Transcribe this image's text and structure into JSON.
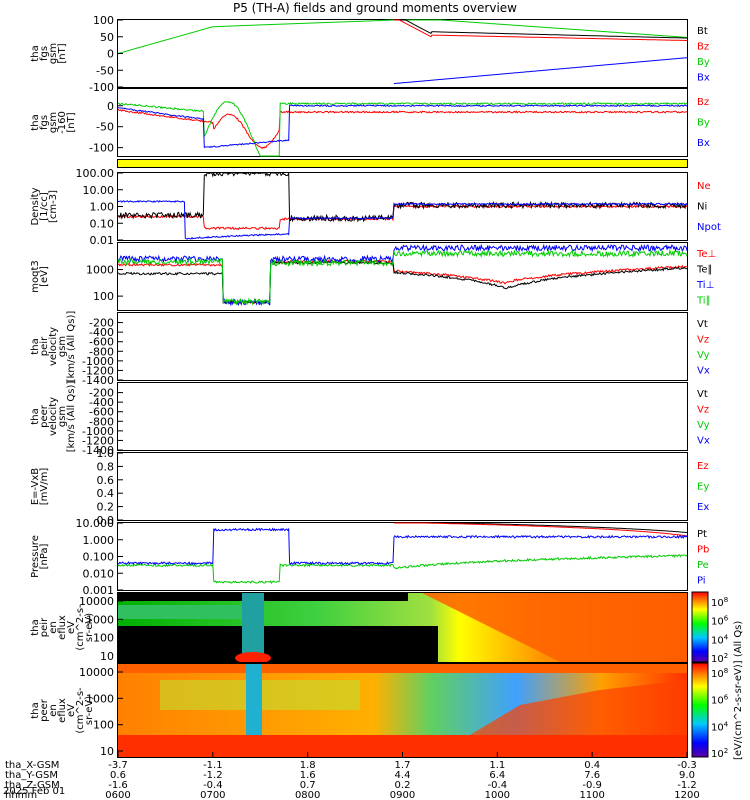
{
  "title": "P5 (TH-A) fields and ground moments overview",
  "date": "2025 Feb 01",
  "colors": {
    "black": "#000000",
    "red": "#ff0000",
    "green": "#00cc00",
    "blue": "#0000ff",
    "yellow": "#ffff00"
  },
  "chart_data": [
    {
      "type": "line",
      "id": "fgs",
      "ylabel_lines": [
        "tha",
        "fgs",
        "gsm",
        "[nT]"
      ],
      "ylim": [
        -100,
        100
      ],
      "ticks": [
        "100",
        "50",
        "0",
        "-50",
        "-100"
      ],
      "series": [
        {
          "name": "Bt",
          "color": "black"
        },
        {
          "name": "Bz",
          "color": "red"
        },
        {
          "name": "By",
          "color": "green"
        },
        {
          "name": "Bx",
          "color": "blue"
        }
      ]
    },
    {
      "type": "line",
      "id": "fgs-dsl",
      "ylabel_lines": [
        "tha",
        "fgs",
        "gsm",
        "-160",
        "[nT]"
      ],
      "ylim": [
        -120,
        40
      ],
      "ticks": [
        "0",
        "-50",
        "-100"
      ],
      "series": [
        {
          "name": "Bz",
          "color": "red"
        },
        {
          "name": "By",
          "color": "green"
        },
        {
          "name": "Bx",
          "color": "blue"
        }
      ]
    },
    {
      "type": "line",
      "id": "density",
      "ylabel_lines": [
        "Density",
        "[1/cc]",
        "[cm-3]"
      ],
      "ylim": [
        0.01,
        100
      ],
      "log": true,
      "ticks": [
        "100.00",
        "10.00",
        "1.00",
        "0.10",
        "0.01"
      ],
      "series": [
        {
          "name": "Ne",
          "color": "red"
        },
        {
          "name": "Ni",
          "color": "black"
        },
        {
          "name": "Npot",
          "color": "blue"
        }
      ]
    },
    {
      "type": "line",
      "id": "temp",
      "ylabel_lines": [
        "moqt3",
        "[eV]"
      ],
      "ylim": [
        30,
        10000
      ],
      "log": true,
      "ticks": [
        "1000",
        "100"
      ],
      "series": [
        {
          "name": "Te⊥",
          "color": "red"
        },
        {
          "name": "Te∥",
          "color": "black"
        },
        {
          "name": "Ti⊥",
          "color": "blue"
        },
        {
          "name": "Ti∥",
          "color": "green"
        }
      ]
    },
    {
      "type": "line",
      "id": "peir-velocity",
      "ylabel_lines": [
        "tha",
        "peir",
        "velocity",
        "gsm",
        "[km/s (All Qs)]"
      ],
      "ylim": [
        -1400,
        0
      ],
      "ticks": [
        "-200",
        "-400",
        "-600",
        "-800",
        "-1000",
        "-1200",
        "-1400"
      ],
      "series": [
        {
          "name": "Vt",
          "color": "black"
        },
        {
          "name": "Vz",
          "color": "red"
        },
        {
          "name": "Vy",
          "color": "green"
        },
        {
          "name": "Vx",
          "color": "blue"
        }
      ]
    },
    {
      "type": "line",
      "id": "peer-velocity",
      "ylabel_lines": [
        "tha",
        "peer",
        "velocity",
        "gsm",
        "[km/s (All Qs)]"
      ],
      "ylim": [
        -1400,
        0
      ],
      "ticks": [
        "-200",
        "-400",
        "-600",
        "-800",
        "-1000",
        "-1200",
        "-1400"
      ],
      "series": [
        {
          "name": "Vt",
          "color": "black"
        },
        {
          "name": "Vz",
          "color": "red"
        },
        {
          "name": "Vy",
          "color": "green"
        },
        {
          "name": "Vx",
          "color": "blue"
        }
      ]
    },
    {
      "type": "line",
      "id": "efield",
      "ylabel_lines": [
        "E=-VxB",
        "[mV/m]"
      ],
      "ylim": [
        0,
        1
      ],
      "ticks": [
        "1.0",
        "0.8",
        "0.6",
        "0.4",
        "0.2",
        "0.0"
      ],
      "series": [
        {
          "name": "Ez",
          "color": "red"
        },
        {
          "name": "Ey",
          "color": "green"
        },
        {
          "name": "Ex",
          "color": "blue"
        }
      ]
    },
    {
      "type": "line",
      "id": "pressure",
      "ylabel_lines": [
        "Pressure",
        "[nPa]"
      ],
      "ylim": [
        0.001,
        10
      ],
      "log": true,
      "ticks": [
        "10.000",
        "1.000",
        "0.100",
        "0.010",
        "0.001"
      ],
      "series": [
        {
          "name": "Pt",
          "color": "black"
        },
        {
          "name": "Pb",
          "color": "red"
        },
        {
          "name": "Pe",
          "color": "green"
        },
        {
          "name": "Pi",
          "color": "blue"
        }
      ]
    },
    {
      "type": "heatmap",
      "id": "peir-spec",
      "ylabel_lines": [
        "tha",
        "peir",
        "en",
        "eflux",
        "eV",
        "(cm^2-s-",
        "sr-eV)"
      ],
      "ticks": [
        "10000",
        "1000",
        "100",
        "10"
      ]
    },
    {
      "type": "heatmap",
      "id": "peer-spec",
      "ylabel_lines": [
        "tha",
        "peer",
        "en",
        "eflux",
        "eV",
        "(cm^2-s-",
        "sr-eV)"
      ],
      "ticks": [
        "10000",
        "1000",
        "100",
        "10"
      ]
    }
  ],
  "colorbar": {
    "label": "[eV/(cm^2-s-sr-eV)] (All Qs)",
    "ticks_top": [
      "10^8",
      "10^6",
      "10^4",
      "10^2"
    ],
    "ticks_bottom": [
      "10^8",
      "10^6",
      "10^4",
      "10^2"
    ]
  },
  "x_axis": {
    "row_labels": [
      "tha_X-GSM",
      "tha_Y-GSM",
      "tha_Z-GSM",
      "hhmm"
    ],
    "columns": [
      {
        "x": "-3.7",
        "y": "0.6",
        "z": "-1.6",
        "t": "0600"
      },
      {
        "x": "-1.1",
        "y": "-1.2",
        "z": "-0.4",
        "t": "0700"
      },
      {
        "x": "1.8",
        "y": "1.6",
        "z": "0.7",
        "t": "0800"
      },
      {
        "x": "1.7",
        "y": "4.4",
        "z": "0.2",
        "t": "0900"
      },
      {
        "x": "1.1",
        "y": "6.4",
        "z": "-0.4",
        "t": "1000"
      },
      {
        "x": "0.4",
        "y": "7.6",
        "z": "-0.9",
        "t": "1100"
      },
      {
        "x": "-0.3",
        "y": "9.0",
        "z": "-1.2",
        "t": "1200"
      }
    ]
  }
}
